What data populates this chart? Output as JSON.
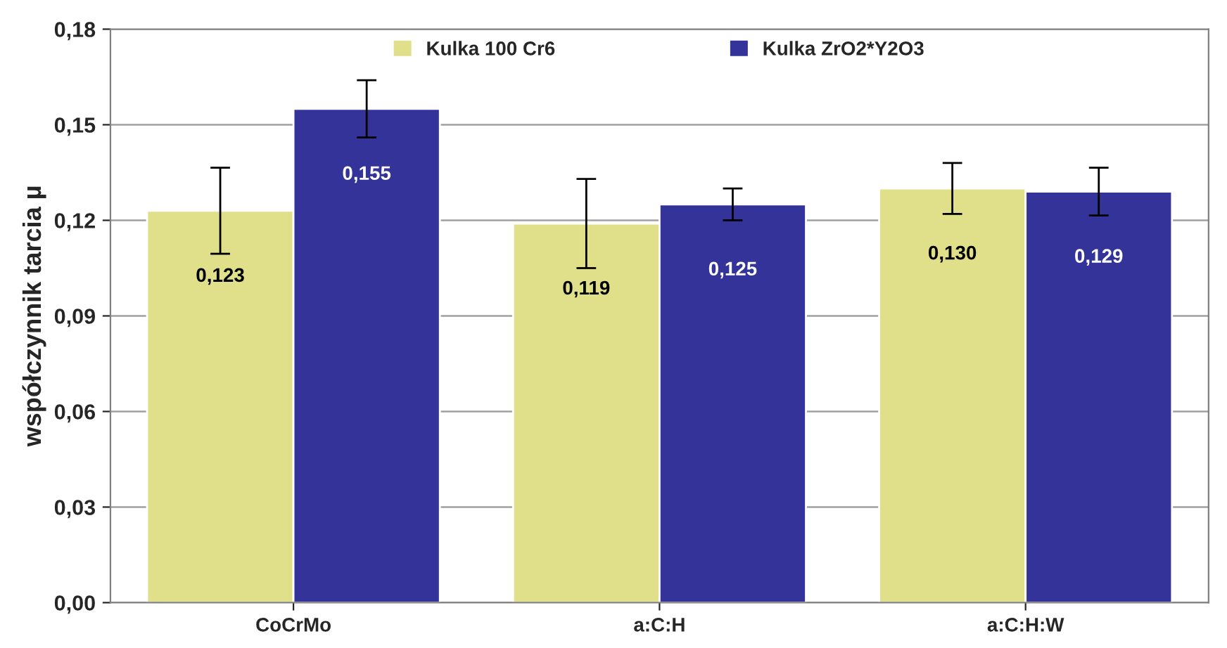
{
  "chart_data": {
    "type": "bar",
    "ylabel": "współczynnik tarcia µ",
    "categories": [
      "CoCrMo",
      "a:C:H",
      "a:C:H:W"
    ],
    "series": [
      {
        "name": "Kulka 100 Cr6",
        "color": "#e0e08a",
        "values": [
          0.123,
          0.119,
          0.13
        ],
        "errors": [
          0.0135,
          0.014,
          0.008
        ],
        "value_labels": [
          "0,123",
          "0,119",
          "0,130"
        ]
      },
      {
        "name": "Kulka ZrO2*Y2O3",
        "color": "#333399",
        "values": [
          0.155,
          0.125,
          0.129
        ],
        "errors": [
          0.009,
          0.005,
          0.0075
        ],
        "value_labels": [
          "0,155",
          "0,125",
          "0,129"
        ]
      }
    ],
    "ylim": [
      0,
      0.18
    ],
    "yticks": [
      {
        "value": 0,
        "label": "0,00"
      },
      {
        "value": 0.03,
        "label": "0,03"
      },
      {
        "value": 0.06,
        "label": "0,06"
      },
      {
        "value": 0.09,
        "label": "0,09"
      },
      {
        "value": 0.12,
        "label": "0,12"
      },
      {
        "value": 0.15,
        "label": "0,15"
      },
      {
        "value": 0.18,
        "label": "0,18"
      }
    ],
    "grid": "y",
    "legend": "top"
  }
}
